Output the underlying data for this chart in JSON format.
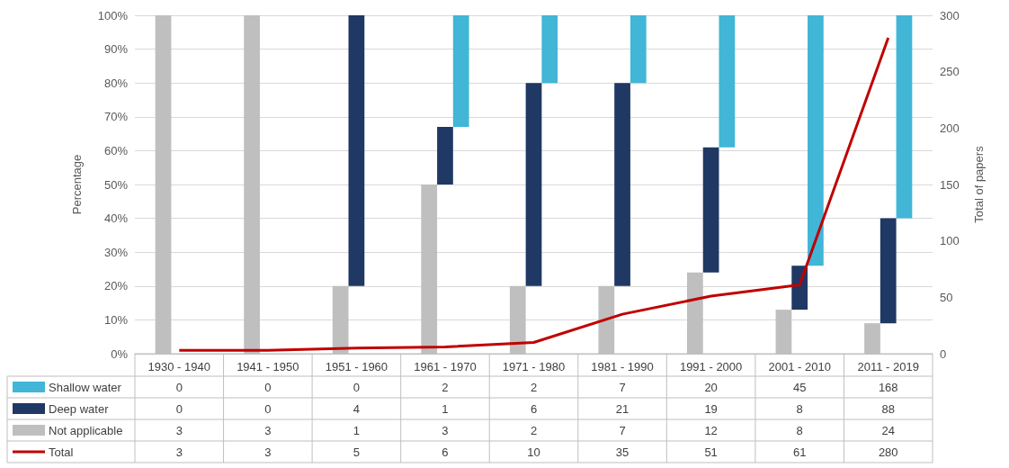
{
  "chart_data": {
    "type": "bar",
    "ylabel": "Percentage",
    "y2label": "Total of papers",
    "categories": [
      "1930 - 1940",
      "1941 - 1950",
      "1951 - 1960",
      "1961 - 1970",
      "1971 - 1980",
      "1981 - 1990",
      "1991 - 2000",
      "2001 - 2010",
      "2011 - 2019"
    ],
    "series": [
      {
        "name": "Shallow water",
        "color": "#41b6d6",
        "values": [
          null,
          null,
          null,
          33,
          20,
          20,
          39,
          74,
          60
        ],
        "base": [
          null,
          null,
          null,
          67,
          80,
          80,
          61,
          26,
          40
        ]
      },
      {
        "name": "Deep water",
        "color": "#1f3864",
        "values": [
          null,
          null,
          80,
          17,
          60,
          60,
          37,
          13,
          31
        ],
        "base": [
          null,
          null,
          20,
          50,
          20,
          20,
          24,
          13,
          9
        ]
      },
      {
        "name": "Not applicable",
        "color": "#bfbfbf",
        "values": [
          100,
          100,
          20,
          50,
          20,
          20,
          24,
          13,
          9
        ],
        "base": [
          0,
          0,
          0,
          0,
          0,
          0,
          0,
          0,
          0
        ]
      },
      {
        "name": "Total",
        "type": "line",
        "axis": "y2",
        "color": "#c00000",
        "values": [
          3,
          3,
          5,
          6,
          10,
          35,
          51,
          61,
          280
        ],
        "value_labels": [
          "3",
          "3",
          "5",
          "6",
          "10",
          "35",
          "51",
          "61",
          "280"
        ]
      }
    ],
    "ylim": [
      0,
      100
    ],
    "yticks": [
      {
        "value": 0,
        "label": "0%"
      },
      {
        "value": 10,
        "label": "10%"
      },
      {
        "value": 20,
        "label": "20%"
      },
      {
        "value": 30,
        "label": "30%"
      },
      {
        "value": 40,
        "label": "40%"
      },
      {
        "value": 50,
        "label": "50%"
      },
      {
        "value": 60,
        "label": "60%"
      },
      {
        "value": 70,
        "label": "70%"
      },
      {
        "value": 80,
        "label": "80%"
      },
      {
        "value": 90,
        "label": "90%"
      },
      {
        "value": 100,
        "label": "100%"
      }
    ],
    "y2lim": [
      0,
      300
    ],
    "y2ticks": [
      0,
      50,
      100,
      150,
      200,
      250,
      300
    ],
    "annotations": [
      "0",
      "0",
      "0",
      "2",
      "2",
      "7",
      "20",
      "45",
      "168",
      "0",
      "0",
      "4",
      "1",
      "6",
      "21",
      "19",
      "8",
      "88",
      "3",
      "3",
      "1",
      "3",
      "2",
      "7",
      "12",
      "8",
      "24"
    ],
    "grid": "y",
    "legend": "bottom",
    "marker": "none",
    "line_style": "solid"
  }
}
